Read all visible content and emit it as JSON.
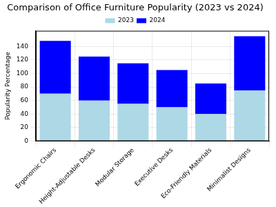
{
  "chart_data": {
    "type": "bar",
    "title": "Comparison of Office Furniture Popularity (2023 vs 2024)",
    "y_label": "Popularity Percentage",
    "categories": [
      "Ergonomic Chairs",
      "Height-Adjustable Desks",
      "Modular Storage",
      "Executive Desks",
      "Eco-Friendly Materials",
      "Minimalist Designs"
    ],
    "series": [
      {
        "name": "2023",
        "color": "#add8e6",
        "values": [
          70,
          60,
          55,
          50,
          40,
          75
        ]
      },
      {
        "name": "2024",
        "color": "#0000ff",
        "values": [
          78,
          65,
          60,
          55,
          45,
          80
        ]
      }
    ],
    "stacked": true,
    "ylim": [
      0,
      163
    ],
    "yticks": [
      0,
      20,
      40,
      60,
      80,
      100,
      120,
      140
    ],
    "grid": true,
    "legend": "top"
  }
}
